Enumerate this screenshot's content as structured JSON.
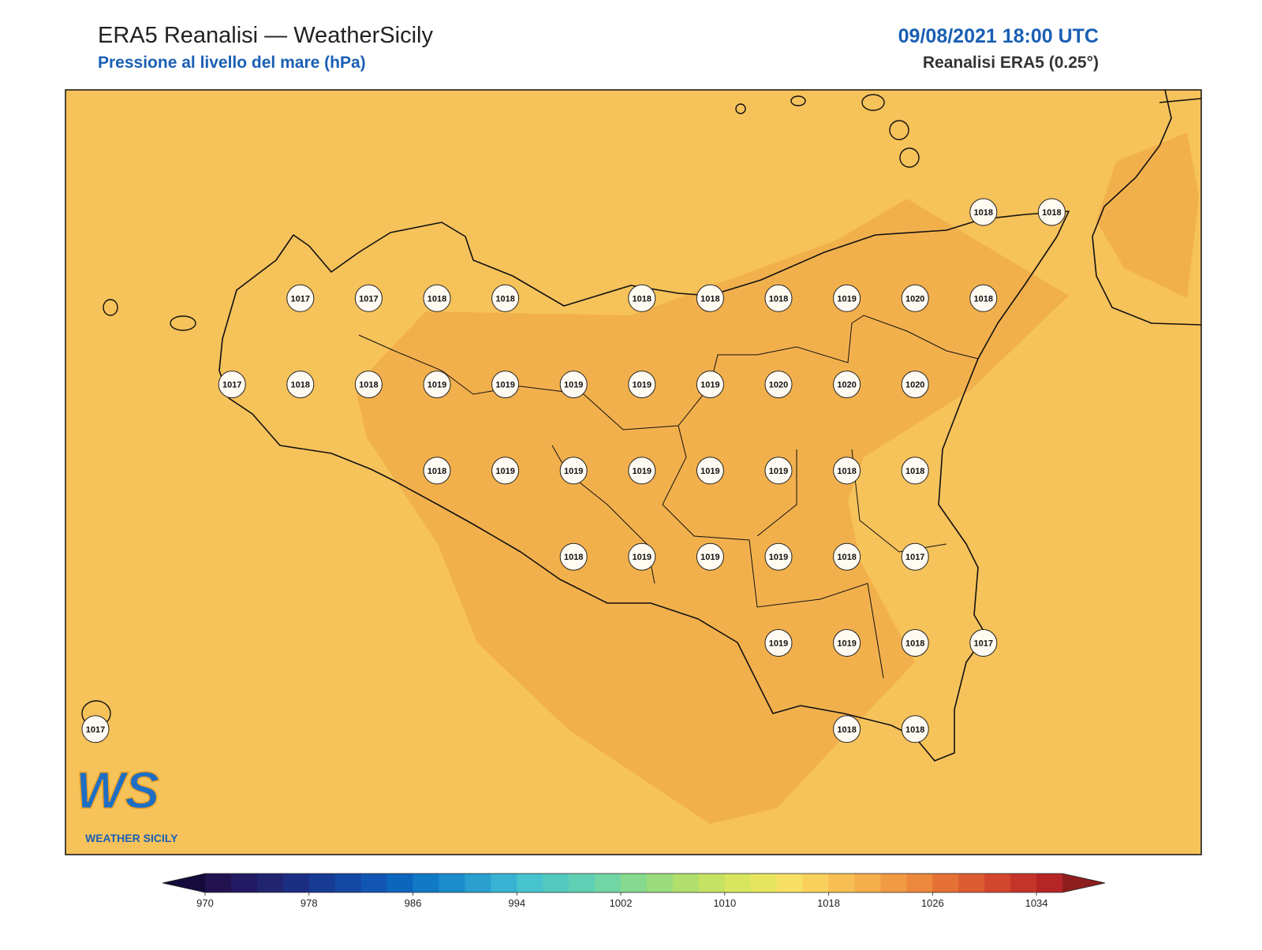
{
  "header": {
    "title": "ERA5 Reanalisi — WeatherSicily",
    "subtitle": "Pressione al livello del mare (hPa)",
    "datetime": "09/08/2021 18:00 UTC",
    "source": "Reanalisi ERA5 (0.25°)"
  },
  "chart_data": {
    "type": "station-map",
    "stations": [
      [
        null,
        null,
        null,
        null,
        null,
        null,
        null,
        null,
        null,
        null,
        null,
        null,
        null,
        1018,
        1018
      ],
      [
        null,
        null,
        null,
        1017,
        1017,
        1018,
        1018,
        null,
        1018,
        1018,
        1018,
        1019,
        1020,
        1018,
        null
      ],
      [
        null,
        null,
        1017,
        1018,
        1018,
        1019,
        1019,
        1019,
        1019,
        1019,
        1020,
        1020,
        1020,
        null,
        null
      ],
      [
        null,
        null,
        null,
        null,
        null,
        1018,
        1019,
        1019,
        1019,
        1019,
        1019,
        1018,
        1018,
        null,
        null
      ],
      [
        null,
        null,
        null,
        null,
        null,
        null,
        null,
        1018,
        1019,
        1019,
        1019,
        1018,
        1017,
        null,
        null
      ],
      [
        null,
        null,
        null,
        null,
        null,
        null,
        null,
        null,
        null,
        null,
        1019,
        1019,
        1018,
        1017,
        null
      ],
      [
        1017,
        null,
        null,
        null,
        null,
        null,
        null,
        null,
        null,
        null,
        null,
        1018,
        1018,
        null,
        null
      ]
    ],
    "colorbar": {
      "lim": [
        970,
        1036
      ],
      "ticks": [
        970,
        978,
        986,
        994,
        1002,
        1010,
        1018,
        1026,
        1034
      ],
      "colors": [
        "#22124f",
        "#231a63",
        "#21246f",
        "#1b2e82",
        "#173a94",
        "#1447a3",
        "#1156b2",
        "#0d66bd",
        "#117ac6",
        "#1c8ccc",
        "#2a9fd0",
        "#38b2d2",
        "#46c3cc",
        "#54c9c0",
        "#60d0b4",
        "#72d6a4",
        "#86d98e",
        "#9bdc7c",
        "#b0df6d",
        "#c5e263",
        "#d7e65e",
        "#e7e560",
        "#f6df63",
        "#f9d05b",
        "#f7bf53",
        "#f4ae4b",
        "#f09a43",
        "#ec873c",
        "#e57136",
        "#dc5b31",
        "#d2462d",
        "#c53429",
        "#b52526"
      ],
      "extend_colors": [
        "#150b3a",
        "#8e1d1d"
      ]
    }
  },
  "logo": {
    "mark": "WS",
    "text": "WEATHER SICILY"
  }
}
